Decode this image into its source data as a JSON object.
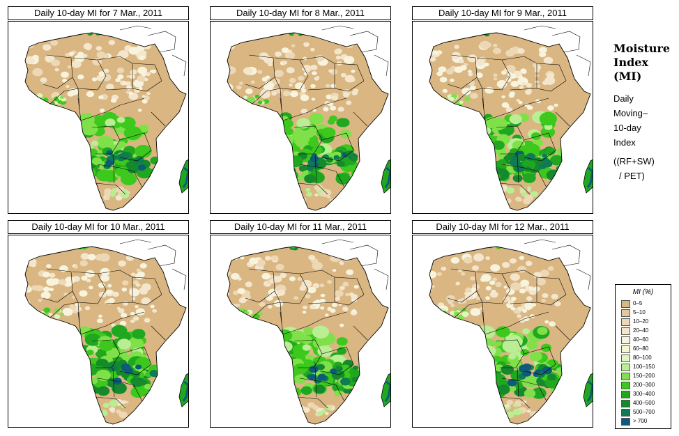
{
  "panels": [
    {
      "title": "Daily 10-day MI for  7 Mar., 2011"
    },
    {
      "title": "Daily 10-day MI for  8 Mar., 2011"
    },
    {
      "title": "Daily 10-day MI for  9 Mar., 2011"
    },
    {
      "title": "Daily 10-day MI for  10 Mar., 2011"
    },
    {
      "title": "Daily 10-day MI for  11 Mar., 2011"
    },
    {
      "title": "Daily 10-day MI for  12 Mar., 2011"
    }
  ],
  "side": {
    "title_lines": [
      "Moisture",
      "Index",
      "(MI)"
    ],
    "desc_lines": [
      "Daily",
      "Moving–",
      "10-day",
      "Index"
    ],
    "formula_lines": [
      "((RF+SW)",
      "/ PET)"
    ]
  },
  "legend": {
    "title": "MI (%)",
    "items": [
      {
        "label": "0–5",
        "color": "#d9b682"
      },
      {
        "label": "5–10",
        "color": "#e5c79c"
      },
      {
        "label": "10–20",
        "color": "#edd8b6"
      },
      {
        "label": "20–40",
        "color": "#f3e6cc"
      },
      {
        "label": "40–60",
        "color": "#f7f3dc"
      },
      {
        "label": "60–80",
        "color": "#f2f9d2"
      },
      {
        "label": "80–100",
        "color": "#dff6bf"
      },
      {
        "label": "100–150",
        "color": "#b9ee94"
      },
      {
        "label": "150–200",
        "color": "#7fe04a"
      },
      {
        "label": "200–300",
        "color": "#3cc81c"
      },
      {
        "label": "300–400",
        "color": "#1fa81f"
      },
      {
        "label": "400–500",
        "color": "#148a2c"
      },
      {
        "label": "500–700",
        "color": "#0f7a53"
      },
      {
        "label": "> 700",
        "color": "#0e5a7a"
      }
    ]
  }
}
